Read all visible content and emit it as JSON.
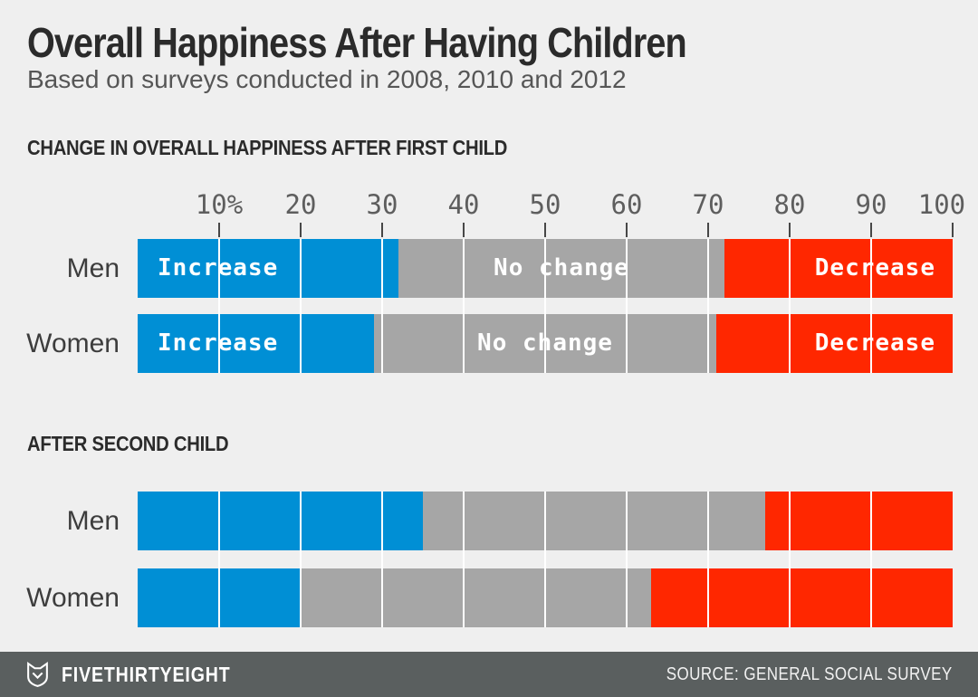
{
  "header": {
    "title": "Overall Happiness After Having Children",
    "subtitle": "Based on surveys conducted in 2008, 2010 and 2012"
  },
  "chart_data": [
    {
      "type": "bar",
      "stacked": true,
      "orientation": "horizontal",
      "section_title": "CHANGE IN OVERALL HAPPINESS AFTER FIRST CHILD",
      "categories": [
        "Men",
        "Women"
      ],
      "series": [
        {
          "name": "Increase",
          "color": "#008FD5",
          "values": [
            32,
            29
          ]
        },
        {
          "name": "No change",
          "color": "#A6A6A6",
          "values": [
            40,
            42
          ]
        },
        {
          "name": "Decrease",
          "color": "#FF2700",
          "values": [
            28,
            29
          ]
        }
      ],
      "xlim": [
        0,
        100
      ],
      "unit": "percent",
      "tick_labels": [
        "10%",
        "20",
        "30",
        "40",
        "50",
        "60",
        "70",
        "80",
        "90",
        "100"
      ],
      "grid": "white vertical lines every 10 units across bars",
      "bar_labels_visible": true,
      "legend_position": "labels inside bars"
    },
    {
      "type": "bar",
      "stacked": true,
      "orientation": "horizontal",
      "section_title": "AFTER SECOND CHILD",
      "categories": [
        "Men",
        "Women"
      ],
      "series": [
        {
          "name": "Increase",
          "color": "#008FD5",
          "values": [
            35,
            20
          ]
        },
        {
          "name": "No change",
          "color": "#A6A6A6",
          "values": [
            42,
            43
          ]
        },
        {
          "name": "Decrease",
          "color": "#FF2700",
          "values": [
            23,
            37
          ]
        }
      ],
      "xlim": [
        0,
        100
      ],
      "unit": "percent",
      "tick_labels": [],
      "grid": "white vertical lines every 10 units across bars",
      "bar_labels_visible": false,
      "legend_position": "none"
    }
  ],
  "footer": {
    "brand": "FIVETHIRTYEIGHT",
    "source": "SOURCE: GENERAL SOCIAL SURVEY"
  },
  "colors": {
    "background": "#EFEFEF",
    "increase_blue": "#008FD5",
    "no_change_gray": "#A6A6A6",
    "decrease_red": "#FF2700",
    "title_text": "#2B2B2B",
    "subtitle_text": "#565656",
    "axis_text": "#5E5E5E",
    "footer_background": "#5A5F5F",
    "footer_text": "#FFFFFF"
  }
}
